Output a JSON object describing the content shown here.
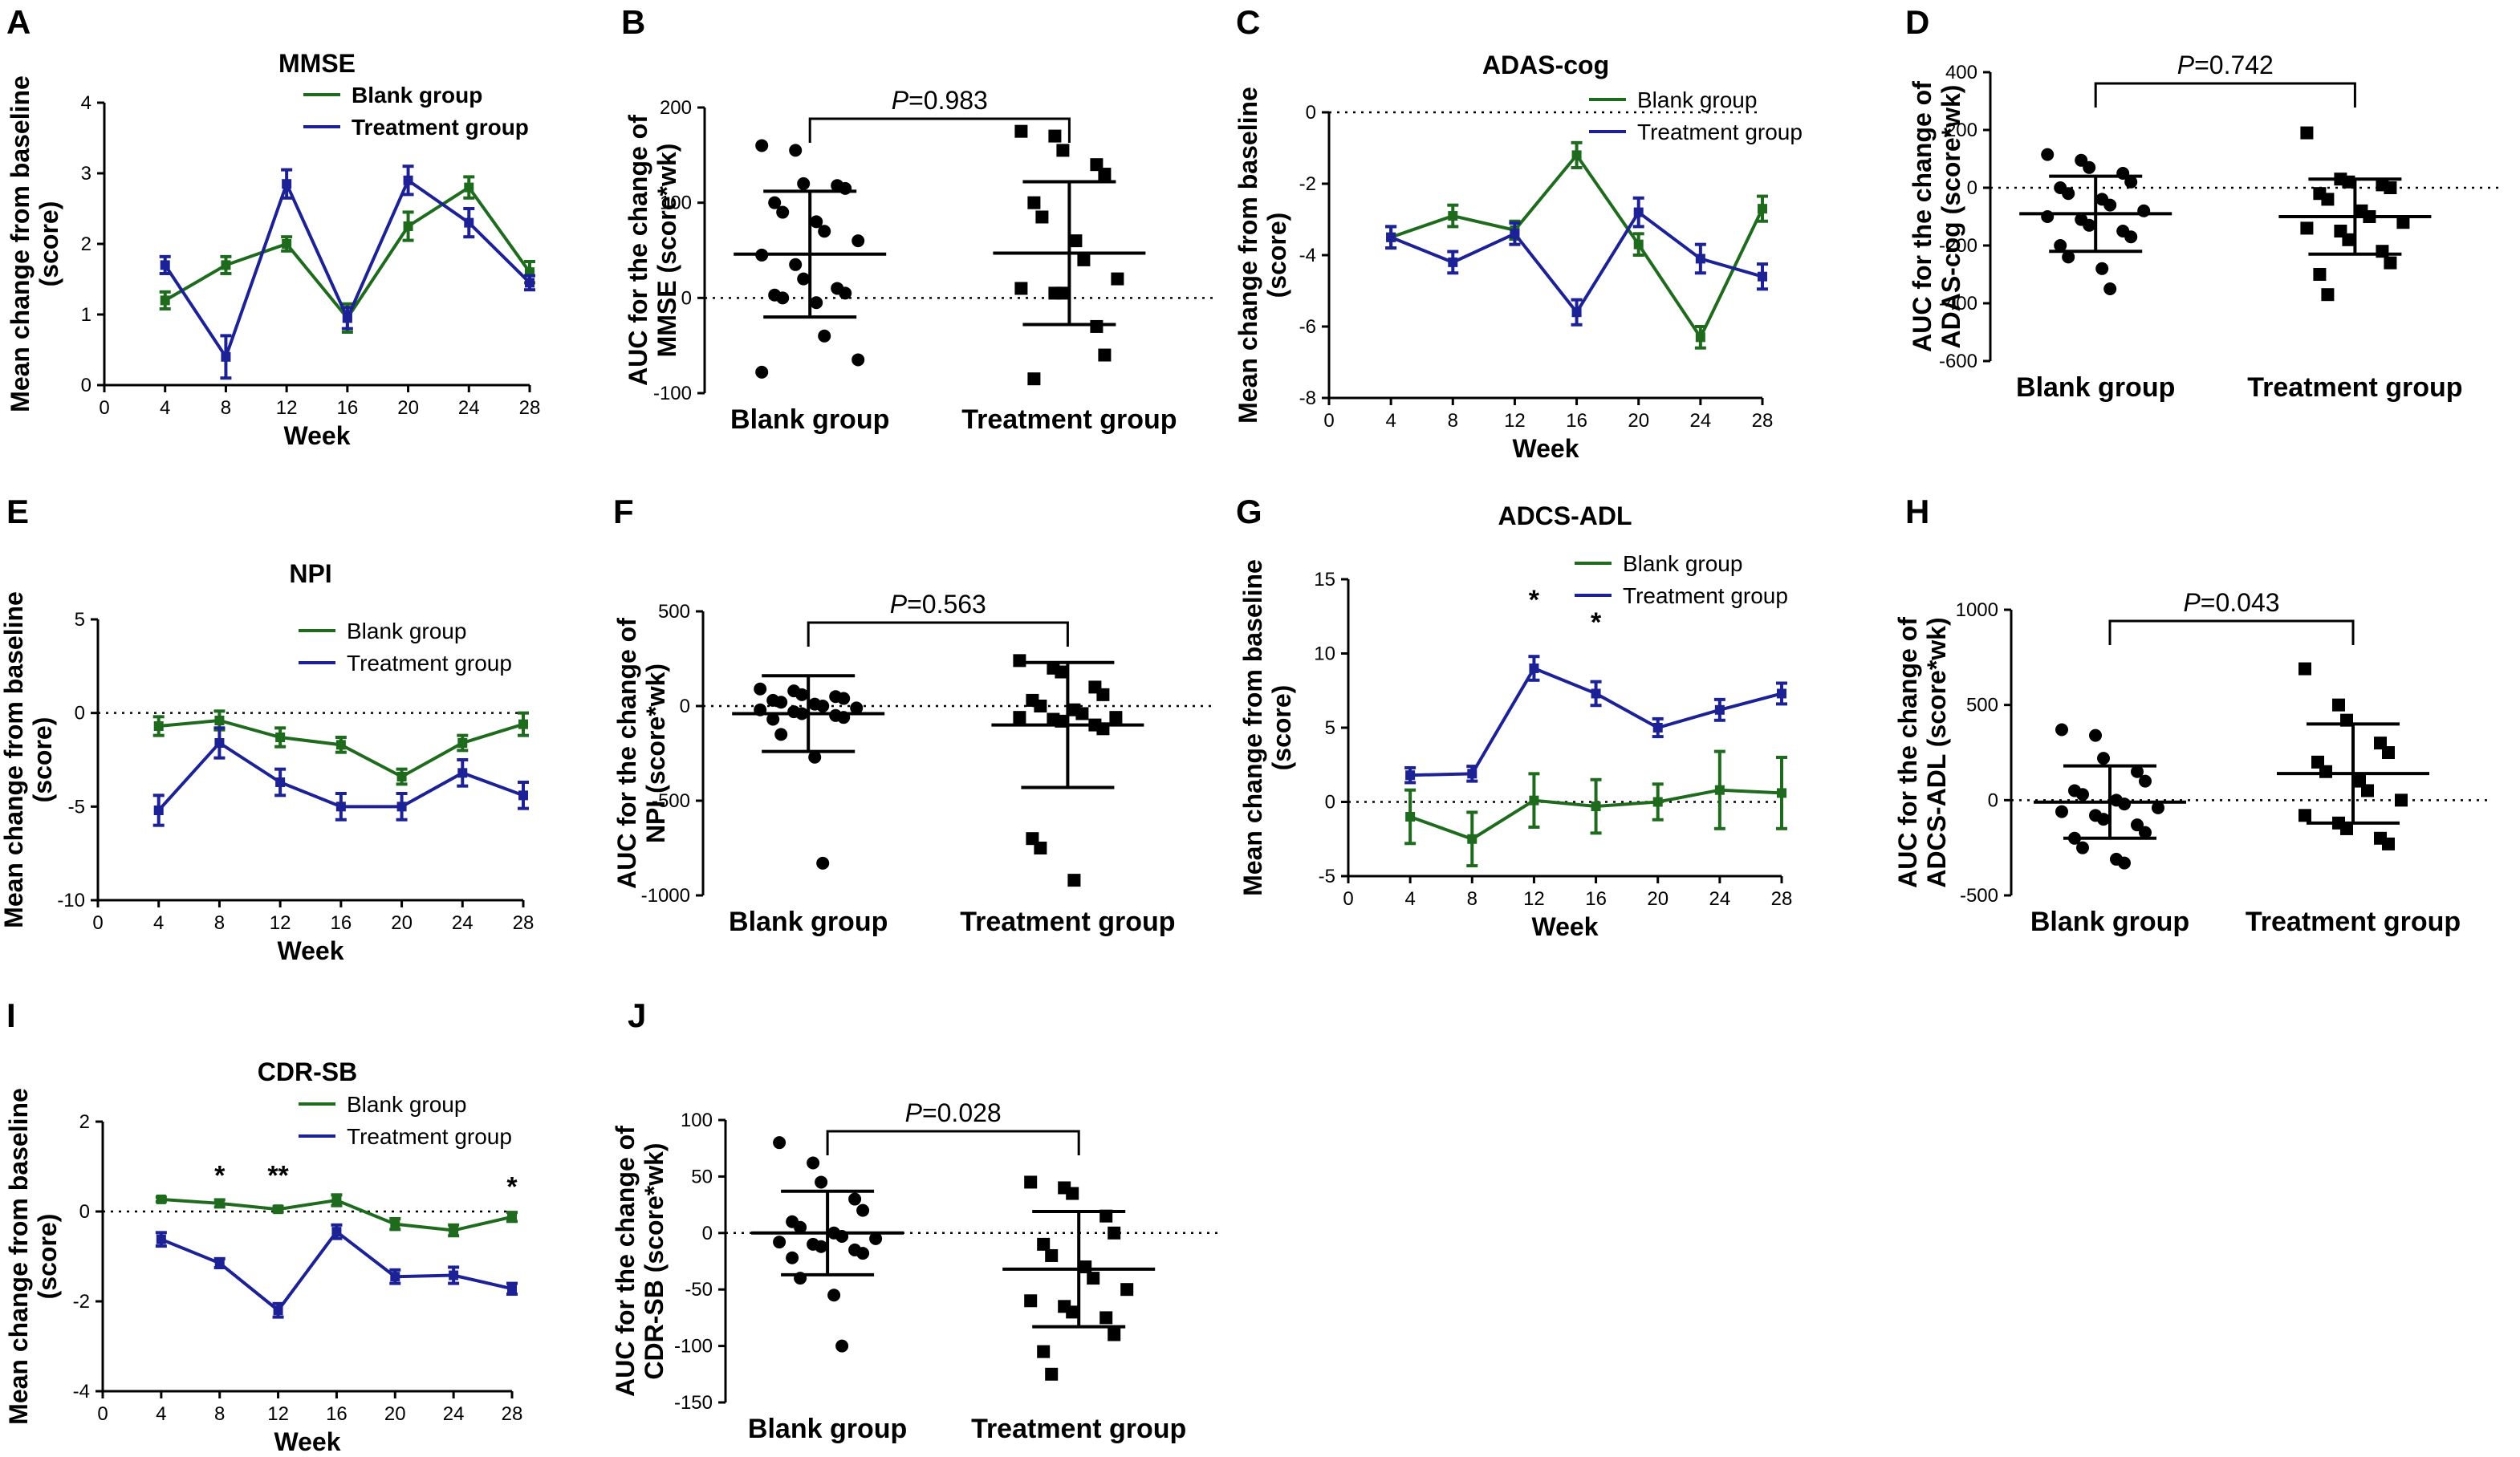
{
  "colors": {
    "blank": "#1e6b1e",
    "treatment": "#1c2196",
    "black": "#000000"
  },
  "chart_data": [
    {
      "id": "A",
      "type": "line",
      "title": "MMSE",
      "title_bold": true,
      "legend_bold": true,
      "xlabel": "Week",
      "ylabel": [
        "Mean change from baseline",
        "(score)"
      ],
      "x": [
        4,
        8,
        12,
        16,
        20,
        24,
        28
      ],
      "xlim": [
        0,
        28
      ],
      "xticks": [
        0,
        4,
        8,
        12,
        16,
        20,
        24,
        28
      ],
      "xtick_labels": [
        "0",
        "4",
        "8",
        "12",
        "16",
        "20",
        "24",
        "28"
      ],
      "ylim": [
        0,
        4
      ],
      "yticks": [
        0,
        1,
        2,
        3,
        4
      ],
      "ytick_labels": [
        "0",
        "1",
        "2",
        "3",
        "4"
      ],
      "zero_line": false,
      "series": [
        {
          "name": "Blank group",
          "key": "blank",
          "values": [
            1.2,
            1.7,
            2.0,
            0.95,
            2.25,
            2.8,
            1.6
          ],
          "err": [
            0.12,
            0.12,
            0.1,
            0.2,
            0.2,
            0.15,
            0.15
          ]
        },
        {
          "name": "Treatment group",
          "key": "treatment",
          "values": [
            1.7,
            0.4,
            2.85,
            0.95,
            2.9,
            2.3,
            1.45
          ],
          "err": [
            0.12,
            0.3,
            0.2,
            0.15,
            0.2,
            0.2,
            0.1
          ]
        }
      ],
      "annotations": []
    },
    {
      "id": "B",
      "type": "scatter",
      "ylabel": [
        "AUC for the change of",
        "MMSE (score*wk)"
      ],
      "categories": [
        "Blank group",
        "Treatment group"
      ],
      "ylim": [
        -100,
        200
      ],
      "yticks": [
        -100,
        0,
        100,
        200
      ],
      "ytick_labels": [
        "-100",
        "0",
        "100",
        "200"
      ],
      "p_prefix": "P",
      "p_value": "=0.983",
      "groups": [
        {
          "name": "Blank group",
          "marker": "circle",
          "mean": 46,
          "sd": 66,
          "points": [
            160,
            155,
            120,
            118,
            115,
            100,
            90,
            80,
            70,
            60,
            45,
            35,
            20,
            10,
            5,
            3,
            0,
            -5,
            -40,
            -65,
            -78
          ]
        },
        {
          "name": "Treatment group",
          "marker": "square",
          "mean": 47,
          "sd": 75,
          "points": [
            175,
            170,
            155,
            140,
            130,
            100,
            85,
            60,
            40,
            20,
            10,
            5,
            5,
            -30,
            -60,
            -85
          ]
        }
      ]
    },
    {
      "id": "C",
      "type": "line",
      "title": "ADAS-cog",
      "title_bold": true,
      "legend_bold": false,
      "xlabel": "Week",
      "ylabel": [
        "Mean change from baseline",
        "(score)"
      ],
      "x": [
        4,
        8,
        12,
        16,
        20,
        24,
        28
      ],
      "xlim": [
        0,
        28
      ],
      "xticks": [
        0,
        4,
        8,
        12,
        16,
        20,
        24,
        28
      ],
      "xtick_labels": [
        "0",
        "4",
        "8",
        "12",
        "16",
        "20",
        "24",
        "28"
      ],
      "ylim": [
        -8,
        0
      ],
      "yticks": [
        -8,
        -6,
        -4,
        -2,
        0
      ],
      "ytick_labels": [
        "-8",
        "-6",
        "-4",
        "-2",
        "0"
      ],
      "zero_line": true,
      "series": [
        {
          "name": "Blank group",
          "key": "blank",
          "values": [
            -3.5,
            -2.9,
            -3.3,
            -1.2,
            -3.7,
            -6.3,
            -2.7
          ],
          "err": [
            0.3,
            0.3,
            0.25,
            0.35,
            0.3,
            0.3,
            0.35
          ]
        },
        {
          "name": "Treatment group",
          "key": "treatment",
          "values": [
            -3.5,
            -4.2,
            -3.4,
            -5.6,
            -2.8,
            -4.1,
            -4.6
          ],
          "err": [
            0.3,
            0.3,
            0.3,
            0.35,
            0.4,
            0.4,
            0.35
          ]
        }
      ],
      "annotations": []
    },
    {
      "id": "D",
      "type": "scatter",
      "ylabel": [
        "AUC for the change of",
        "ADAS-cog (score*wk)"
      ],
      "categories": [
        "Blank group",
        "Treatment group"
      ],
      "ylim": [
        -600,
        400
      ],
      "yticks": [
        -600,
        -400,
        -200,
        0,
        200,
        400
      ],
      "ytick_labels": [
        "-600",
        "-400",
        "-200",
        "0",
        "200",
        "400"
      ],
      "p_prefix": "P",
      "p_value": "=0.742",
      "groups": [
        {
          "name": "Blank group",
          "marker": "circle",
          "mean": -90,
          "sd": 130,
          "points": [
            115,
            95,
            70,
            50,
            20,
            0,
            -20,
            -40,
            -60,
            -80,
            -100,
            -110,
            -130,
            -150,
            -170,
            -200,
            -240,
            -280,
            -350
          ]
        },
        {
          "name": "Treatment group",
          "marker": "square",
          "mean": -100,
          "sd": 130,
          "points": [
            190,
            30,
            20,
            10,
            0,
            -20,
            -40,
            -80,
            -100,
            -120,
            -140,
            -150,
            -180,
            -220,
            -260,
            -300,
            -370
          ]
        }
      ]
    },
    {
      "id": "E",
      "type": "line",
      "title": "NPI",
      "title_bold": true,
      "legend_bold": false,
      "xlabel": "Week",
      "ylabel": [
        "Mean change from baseline",
        "(score)"
      ],
      "x": [
        4,
        8,
        12,
        16,
        20,
        24,
        28
      ],
      "xlim": [
        0,
        28
      ],
      "xticks": [
        0,
        4,
        8,
        12,
        16,
        20,
        24,
        28
      ],
      "xtick_labels": [
        "0",
        "4",
        "8",
        "12",
        "16",
        "20",
        "24",
        "28"
      ],
      "ylim": [
        -10,
        5
      ],
      "yticks": [
        -10,
        -5,
        0,
        5
      ],
      "ytick_labels": [
        "-10",
        "-5",
        "0",
        "5"
      ],
      "zero_line": true,
      "series": [
        {
          "name": "Blank group",
          "key": "blank",
          "values": [
            -0.7,
            -0.4,
            -1.3,
            -1.7,
            -3.4,
            -1.6,
            -0.6
          ],
          "err": [
            0.5,
            0.5,
            0.5,
            0.4,
            0.4,
            0.4,
            0.6
          ]
        },
        {
          "name": "Treatment group",
          "key": "treatment",
          "values": [
            -5.2,
            -1.6,
            -3.7,
            -5.0,
            -5.0,
            -3.2,
            -4.4
          ],
          "err": [
            0.8,
            0.8,
            0.7,
            0.7,
            0.7,
            0.7,
            0.7
          ]
        }
      ],
      "annotations": []
    },
    {
      "id": "F",
      "type": "scatter",
      "ylabel": [
        "AUC for the change of",
        "NPI (score*wk)"
      ],
      "categories": [
        "Blank group",
        "Treatment group"
      ],
      "ylim": [
        -1000,
        500
      ],
      "yticks": [
        -1000,
        -500,
        0,
        500
      ],
      "ytick_labels": [
        "-1000",
        "-500",
        "0",
        "500"
      ],
      "p_prefix": "P",
      "p_value": "=0.563",
      "groups": [
        {
          "name": "Blank group",
          "marker": "circle",
          "mean": -40,
          "sd": 200,
          "points": [
            90,
            80,
            60,
            50,
            40,
            30,
            20,
            10,
            0,
            -10,
            -20,
            -30,
            -40,
            -50,
            -60,
            -70,
            -150,
            -270,
            -830
          ]
        },
        {
          "name": "Treatment group",
          "marker": "square",
          "mean": -100,
          "sd": 330,
          "points": [
            240,
            200,
            180,
            100,
            60,
            30,
            0,
            -20,
            -40,
            -60,
            -60,
            -70,
            -80,
            -100,
            -120,
            -700,
            -750,
            -920
          ]
        }
      ]
    },
    {
      "id": "G",
      "type": "line",
      "title": "ADCS-ADL",
      "title_bold": true,
      "legend_bold": false,
      "xlabel": "Week",
      "ylabel": [
        "Mean change from baseline",
        "(score)"
      ],
      "x": [
        4,
        8,
        12,
        16,
        20,
        24,
        28
      ],
      "xlim": [
        0,
        28
      ],
      "xticks": [
        0,
        4,
        8,
        12,
        16,
        20,
        24,
        28
      ],
      "xtick_labels": [
        "0",
        "4",
        "8",
        "12",
        "16",
        "20",
        "24",
        "28"
      ],
      "ylim": [
        -5,
        15
      ],
      "yticks": [
        -5,
        0,
        5,
        10,
        15
      ],
      "ytick_labels": [
        "-5",
        "0",
        "5",
        "10",
        "15"
      ],
      "zero_line": true,
      "series": [
        {
          "name": "Blank group",
          "key": "blank",
          "values": [
            -1.0,
            -2.5,
            0.1,
            -0.3,
            0.0,
            0.8,
            0.6
          ],
          "err": [
            1.8,
            1.8,
            1.8,
            1.8,
            1.2,
            2.6,
            2.4
          ]
        },
        {
          "name": "Treatment group",
          "key": "treatment",
          "values": [
            1.8,
            1.9,
            9.0,
            7.3,
            5.0,
            6.2,
            7.3
          ],
          "err": [
            0.5,
            0.5,
            0.8,
            0.8,
            0.6,
            0.7,
            0.7
          ]
        }
      ],
      "annotations": [
        {
          "x": 12,
          "y": 13.0,
          "text": "*"
        },
        {
          "x": 16,
          "y": 11.5,
          "text": "*"
        }
      ]
    },
    {
      "id": "H",
      "type": "scatter",
      "ylabel": [
        "AUC for the change of",
        "ADCS-ADL (score*wk)"
      ],
      "categories": [
        "Blank group",
        "Treatment group"
      ],
      "ylim": [
        -500,
        1000
      ],
      "yticks": [
        -500,
        0,
        500,
        1000
      ],
      "ytick_labels": [
        "-500",
        "0",
        "500",
        "1000"
      ],
      "p_prefix": "P",
      "p_value": "=0.043",
      "groups": [
        {
          "name": "Blank group",
          "marker": "circle",
          "mean": -10,
          "sd": 190,
          "points": [
            370,
            340,
            220,
            150,
            100,
            50,
            30,
            0,
            -20,
            -40,
            -60,
            -80,
            -100,
            -130,
            -170,
            -200,
            -250,
            -310,
            -330
          ]
        },
        {
          "name": "Treatment group",
          "marker": "square",
          "mean": 140,
          "sd": 260,
          "points": [
            690,
            500,
            420,
            300,
            250,
            200,
            150,
            100,
            50,
            0,
            -80,
            -120,
            -150,
            -200,
            -230
          ]
        }
      ]
    },
    {
      "id": "I",
      "type": "line",
      "title": "CDR-SB",
      "title_bold": true,
      "legend_bold": false,
      "xlabel": "Week",
      "ylabel": [
        "Mean change from baseline",
        "(score)"
      ],
      "x": [
        4,
        8,
        12,
        16,
        20,
        24,
        28
      ],
      "xlim": [
        0,
        28
      ],
      "xticks": [
        0,
        4,
        8,
        12,
        16,
        20,
        24,
        28
      ],
      "xtick_labels": [
        "0",
        "4",
        "8",
        "12",
        "16",
        "20",
        "24",
        "28"
      ],
      "ylim": [
        -4,
        2
      ],
      "yticks": [
        -4,
        -2,
        0,
        2
      ],
      "ytick_labels": [
        "-4",
        "-2",
        "0",
        "2"
      ],
      "zero_line": true,
      "series": [
        {
          "name": "Blank group",
          "key": "blank",
          "values": [
            0.27,
            0.18,
            0.05,
            0.25,
            -0.28,
            -0.42,
            -0.12
          ],
          "err": [
            0.05,
            0.08,
            0.06,
            0.12,
            0.12,
            0.12,
            0.1
          ]
        },
        {
          "name": "Treatment group",
          "key": "treatment",
          "values": [
            -0.62,
            -1.15,
            -2.2,
            -0.45,
            -1.45,
            -1.42,
            -1.72
          ],
          "err": [
            0.15,
            0.1,
            0.15,
            0.15,
            0.15,
            0.18,
            0.12
          ]
        }
      ],
      "annotations": [
        {
          "x": 8,
          "y": 0.6,
          "text": "*"
        },
        {
          "x": 12,
          "y": 0.6,
          "text": "**"
        },
        {
          "x": 28,
          "y": 0.35,
          "text": "*"
        }
      ]
    },
    {
      "id": "J",
      "type": "scatter",
      "ylabel": [
        "AUC for the change of",
        "CDR-SB (score*wk)"
      ],
      "categories": [
        "Blank group",
        "Treatment group"
      ],
      "ylim": [
        -150,
        100
      ],
      "yticks": [
        -150,
        -100,
        -50,
        0,
        50,
        100
      ],
      "ytick_labels": [
        "-150",
        "-100",
        "-50",
        "0",
        "50",
        "100"
      ],
      "p_prefix": "P",
      "p_value": "=0.028",
      "groups": [
        {
          "name": "Blank group",
          "marker": "circle",
          "mean": 0,
          "sd": 37,
          "points": [
            80,
            62,
            45,
            30,
            20,
            10,
            5,
            0,
            -3,
            -5,
            -8,
            -10,
            -12,
            -15,
            -18,
            -22,
            -40,
            -55,
            -100
          ]
        },
        {
          "name": "Treatment group",
          "marker": "square",
          "mean": -32,
          "sd": 51,
          "points": [
            45,
            40,
            35,
            15,
            0,
            -10,
            -20,
            -30,
            -40,
            -50,
            -60,
            -65,
            -70,
            -75,
            -90,
            -105,
            -125
          ]
        }
      ]
    }
  ]
}
